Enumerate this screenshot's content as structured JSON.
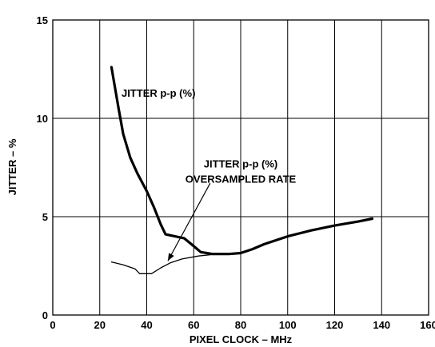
{
  "chart_data": {
    "type": "line",
    "title": "",
    "xlabel": "PIXEL CLOCK – MHz",
    "ylabel": "JITTER – %",
    "xlim": [
      0,
      160
    ],
    "ylim": [
      0,
      15
    ],
    "x_ticks": [
      0,
      20,
      40,
      60,
      80,
      100,
      120,
      140,
      160
    ],
    "y_ticks": [
      0,
      5,
      10,
      15
    ],
    "grid": true,
    "legend": "none",
    "colors": {
      "line": "#000000",
      "grid": "#000000",
      "background": "#ffffff"
    },
    "series": [
      {
        "name": "JITTER p-p (%)",
        "emphasis": "thick",
        "points": [
          [
            25,
            12.6
          ],
          [
            28,
            10.5
          ],
          [
            30,
            9.2
          ],
          [
            33,
            8.0
          ],
          [
            36,
            7.2
          ],
          [
            40,
            6.3
          ],
          [
            43,
            5.5
          ],
          [
            46,
            4.6
          ],
          [
            48,
            4.1
          ],
          [
            52,
            4.0
          ],
          [
            56,
            3.9
          ],
          [
            60,
            3.5
          ],
          [
            63,
            3.2
          ],
          [
            68,
            3.1
          ],
          [
            75,
            3.1
          ],
          [
            80,
            3.15
          ],
          [
            85,
            3.35
          ],
          [
            90,
            3.6
          ],
          [
            100,
            4.0
          ],
          [
            110,
            4.3
          ],
          [
            120,
            4.55
          ],
          [
            130,
            4.75
          ],
          [
            136,
            4.9
          ]
        ]
      },
      {
        "name": "JITTER p-p (%) OVERSAMPLED RATE",
        "emphasis": "thin",
        "points": [
          [
            25,
            2.7
          ],
          [
            30,
            2.55
          ],
          [
            35,
            2.35
          ],
          [
            37,
            2.1
          ],
          [
            42,
            2.1
          ],
          [
            46,
            2.4
          ],
          [
            50,
            2.65
          ],
          [
            55,
            2.85
          ],
          [
            62,
            3.0
          ],
          [
            70,
            3.1
          ]
        ]
      }
    ],
    "annotations": [
      {
        "lines": [
          "JITTER p-p (%)"
        ],
        "x": 45,
        "y": 11.1,
        "anchor": "middle"
      },
      {
        "lines": [
          "JITTER p-p (%)",
          "OVERSAMPLED RATE"
        ],
        "x": 80,
        "y": 7.5,
        "anchor": "middle"
      }
    ],
    "arrow": {
      "from": [
        67,
        6.7
      ],
      "to": [
        49,
        2.75
      ]
    }
  }
}
